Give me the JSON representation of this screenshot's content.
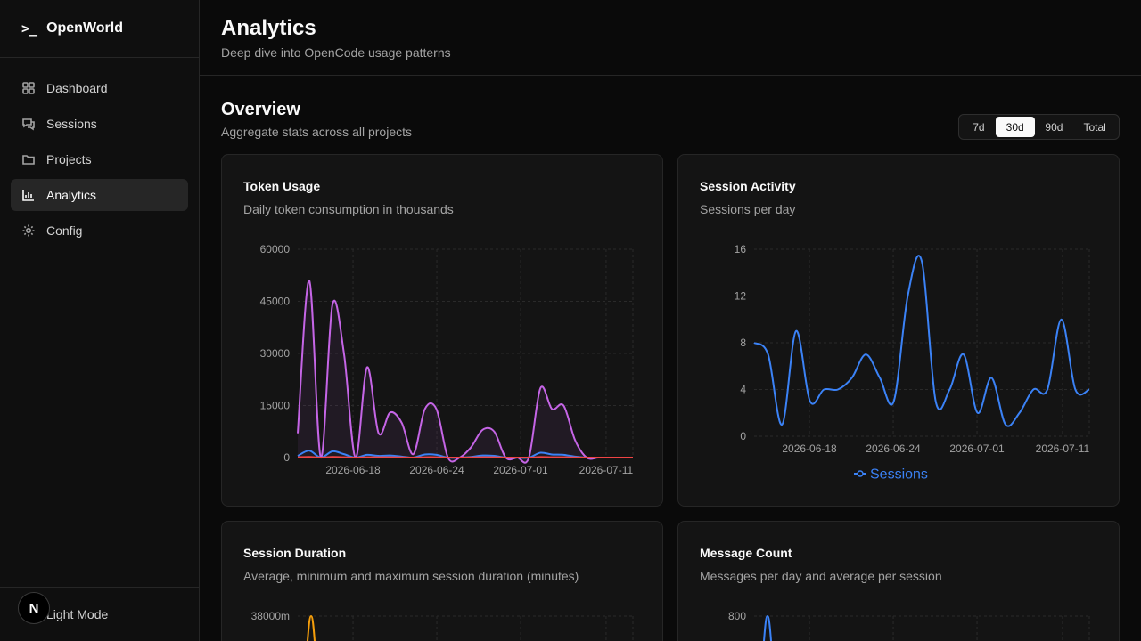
{
  "sidebar": {
    "brand": {
      "prompt": ">_",
      "name": "OpenWorld"
    },
    "items": [
      {
        "label": "Dashboard",
        "icon": "dashboard-icon"
      },
      {
        "label": "Sessions",
        "icon": "chat-icon"
      },
      {
        "label": "Projects",
        "icon": "folder-icon"
      },
      {
        "label": "Analytics",
        "icon": "bar-chart-icon",
        "active": true
      },
      {
        "label": "Config",
        "icon": "gear-icon"
      }
    ],
    "theme_toggle": "Light Mode",
    "badge": "N"
  },
  "header": {
    "title": "Analytics",
    "subtitle": "Deep dive into OpenCode usage patterns"
  },
  "overview": {
    "title": "Overview",
    "subtitle": "Aggregate stats across all projects",
    "ranges": [
      "7d",
      "30d",
      "90d",
      "Total"
    ],
    "selected_range": "30d"
  },
  "cards": {
    "token_usage": {
      "title": "Token Usage",
      "subtitle": "Daily token consumption in thousands"
    },
    "session_activity": {
      "title": "Session Activity",
      "subtitle": "Sessions per day"
    },
    "session_duration": {
      "title": "Session Duration",
      "subtitle": "Average, minimum and maximum session duration (minutes)"
    },
    "message_count": {
      "title": "Message Count",
      "subtitle": "Messages per day and average per session"
    }
  },
  "chart_data": [
    {
      "id": "token_usage",
      "type": "area",
      "x_ticks": [
        "2026-06-18",
        "2026-06-24",
        "2026-07-01",
        "2026-07-11"
      ],
      "y_ticks": [
        "0",
        "15000",
        "30000",
        "45000",
        "60000"
      ],
      "ylim": [
        0,
        60000
      ],
      "x": [
        "2026-06-14",
        "2026-06-15",
        "2026-06-16",
        "2026-06-17",
        "2026-06-18",
        "2026-06-19",
        "2026-06-20",
        "2026-06-21",
        "2026-06-22",
        "2026-06-23",
        "2026-06-24",
        "2026-06-25",
        "2026-06-26",
        "2026-06-27",
        "2026-06-28",
        "2026-06-29",
        "2026-06-30",
        "2026-07-01",
        "2026-07-02",
        "2026-07-03",
        "2026-07-04",
        "2026-07-05",
        "2026-07-06",
        "2026-07-07",
        "2026-07-08",
        "2026-07-09",
        "2026-07-10",
        "2026-07-11",
        "2026-07-12",
        "2026-07-13"
      ],
      "series": [
        {
          "color": "#c565e6",
          "fill": true,
          "values": [
            7000,
            51000,
            0,
            44000,
            30000,
            0,
            26000,
            7000,
            13000,
            10000,
            1000,
            14000,
            14000,
            0,
            0,
            3000,
            8000,
            7500,
            0,
            0,
            0,
            20000,
            14000,
            15000,
            5000,
            0,
            0,
            0,
            0,
            0
          ]
        },
        {
          "color": "#3b82f6",
          "values": [
            500,
            2000,
            0,
            1800,
            1000,
            0,
            800,
            500,
            600,
            300,
            0,
            900,
            800,
            0,
            0,
            200,
            600,
            500,
            0,
            0,
            0,
            1400,
            900,
            800,
            300,
            0,
            0,
            0,
            0,
            0
          ]
        },
        {
          "color": "#ef4444",
          "values": [
            100,
            200,
            0,
            200,
            100,
            0,
            100,
            100,
            100,
            50,
            0,
            100,
            100,
            0,
            0,
            50,
            100,
            100,
            0,
            0,
            0,
            150,
            100,
            100,
            50,
            0,
            0,
            0,
            0,
            0
          ]
        }
      ]
    },
    {
      "id": "session_activity",
      "type": "line",
      "x_ticks": [
        "2026-06-18",
        "2026-06-24",
        "2026-07-01",
        "2026-07-11"
      ],
      "y_ticks": [
        "0",
        "4",
        "8",
        "12",
        "16"
      ],
      "ylim": [
        0,
        16
      ],
      "series": [
        {
          "name": "Sessions",
          "color": "#3b82f6",
          "values": [
            8,
            7,
            1,
            9,
            3,
            4,
            4,
            5,
            7,
            5,
            3,
            12,
            15,
            3,
            4,
            7,
            2,
            5,
            1,
            2,
            4,
            4,
            10,
            4,
            4
          ]
        }
      ]
    },
    {
      "id": "session_duration",
      "type": "line",
      "y_ticks": [
        "38000m"
      ],
      "series": [
        {
          "color": "#f59e0b",
          "values": [
            0,
            38000,
            0
          ]
        }
      ]
    },
    {
      "id": "message_count",
      "type": "line",
      "y_ticks": [
        "800"
      ],
      "series": [
        {
          "color": "#3b82f6",
          "values": [
            0,
            800,
            0
          ]
        }
      ]
    }
  ]
}
